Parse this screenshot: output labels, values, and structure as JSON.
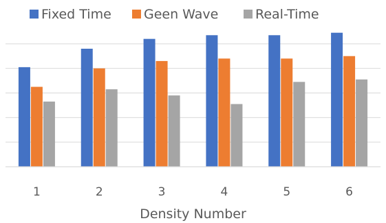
{
  "chart_data": {
    "type": "bar",
    "categories": [
      "1",
      "2",
      "3",
      "4",
      "5",
      "6"
    ],
    "series": [
      {
        "name": "Fixed Time",
        "color": "#4472C4",
        "values": [
          40.5,
          48,
          52,
          53.5,
          53.5,
          54.5
        ]
      },
      {
        "name": "Geen Wave",
        "color": "#ED7D31",
        "values": [
          32.5,
          40,
          43,
          44,
          44,
          45
        ]
      },
      {
        "name": "Real-Time",
        "color": "#A5A5A5",
        "values": [
          26.5,
          31.5,
          29,
          25.5,
          34.5,
          35.5
        ]
      }
    ],
    "xlabel": "Density Number",
    "ylabel": "",
    "ylim": [
      0,
      60
    ],
    "grid": true,
    "legend": "top"
  }
}
